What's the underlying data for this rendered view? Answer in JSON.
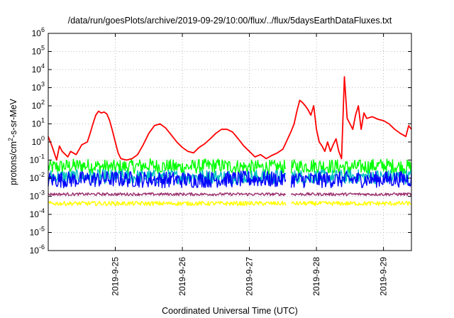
{
  "chart_data": {
    "type": "line",
    "title": "/data/run/goesPlots/archive/2019-09-29/10:00/flux/../flux/5daysEarthDataFluxes.txt",
    "xlabel": "Coordinated Universal Time (UTC)",
    "ylabel_main": "protons/cm",
    "ylabel_sup": "2",
    "ylabel_rest": "-s-sr-MeV",
    "y_scale": "log",
    "ylim": [
      1e-06,
      1000000.0
    ],
    "y_ticks": [
      {
        "value": 1e-06,
        "base": "10",
        "exp": "-6"
      },
      {
        "value": 1e-05,
        "base": "10",
        "exp": "-5"
      },
      {
        "value": 0.0001,
        "base": "10",
        "exp": "-4"
      },
      {
        "value": 0.001,
        "base": "10",
        "exp": "-3"
      },
      {
        "value": 0.01,
        "base": "10",
        "exp": "-2"
      },
      {
        "value": 0.1,
        "base": "10",
        "exp": "-1"
      },
      {
        "value": 1,
        "base": "10",
        "exp": "0"
      },
      {
        "value": 10,
        "base": "10",
        "exp": "1"
      },
      {
        "value": 100,
        "base": "10",
        "exp": "2"
      },
      {
        "value": 1000,
        "base": "10",
        "exp": "3"
      },
      {
        "value": 10000,
        "base": "10",
        "exp": "4"
      },
      {
        "value": 100000,
        "base": "10",
        "exp": "5"
      },
      {
        "value": 1000000,
        "base": "10",
        "exp": "6"
      }
    ],
    "x_ticks": [
      {
        "value": "2019-09-25",
        "label": "2019-9-25"
      },
      {
        "value": "2019-09-26",
        "label": "2019-9-26"
      },
      {
        "value": "2019-09-27",
        "label": "2019-9-27"
      },
      {
        "value": "2019-09-28",
        "label": "2019-9-28"
      },
      {
        "value": "2019-09-29",
        "label": "2019-9-29"
      }
    ],
    "xlim": [
      "2019-09-24 00:00",
      "2019-09-29 10:00"
    ],
    "grid": true,
    "legend": "none",
    "data_gaps": [
      [
        "2019-09-27 13:00",
        "2019-09-27 15:00"
      ]
    ],
    "series": [
      {
        "color": "#ff0000",
        "points": [
          [
            "2019-09-24 00:00",
            2.0
          ],
          [
            "2019-09-24 01:30",
            0.5
          ],
          [
            "2019-09-24 03:00",
            0.1
          ],
          [
            "2019-09-24 04:00",
            0.6
          ],
          [
            "2019-09-24 05:00",
            0.3
          ],
          [
            "2019-09-24 07:00",
            0.15
          ],
          [
            "2019-09-24 08:00",
            0.3
          ],
          [
            "2019-09-24 10:00",
            0.2
          ],
          [
            "2019-09-24 12:00",
            0.7
          ],
          [
            "2019-09-24 14:00",
            1.0
          ],
          [
            "2019-09-24 15:00",
            3.0
          ],
          [
            "2019-09-24 16:00",
            10
          ],
          [
            "2019-09-24 17:00",
            30
          ],
          [
            "2019-09-24 18:00",
            50
          ],
          [
            "2019-09-24 19:00",
            40
          ],
          [
            "2019-09-24 20:00",
            45
          ],
          [
            "2019-09-24 21:00",
            35
          ],
          [
            "2019-09-24 22:00",
            15
          ],
          [
            "2019-09-24 23:00",
            4.0
          ],
          [
            "2019-09-25 00:00",
            1.0
          ],
          [
            "2019-09-25 01:00",
            0.25
          ],
          [
            "2019-09-25 02:00",
            0.12
          ],
          [
            "2019-09-25 04:00",
            0.1
          ],
          [
            "2019-09-25 06:00",
            0.12
          ],
          [
            "2019-09-25 08:00",
            0.2
          ],
          [
            "2019-09-25 10:00",
            0.7
          ],
          [
            "2019-09-25 12:00",
            3.0
          ],
          [
            "2019-09-25 14:00",
            8.0
          ],
          [
            "2019-09-25 16:00",
            10
          ],
          [
            "2019-09-25 18:00",
            6.0
          ],
          [
            "2019-09-25 20:00",
            2.5
          ],
          [
            "2019-09-25 22:00",
            1.0
          ],
          [
            "2019-09-26 00:00",
            0.5
          ],
          [
            "2019-09-26 02:00",
            0.3
          ],
          [
            "2019-09-26 04:00",
            0.25
          ],
          [
            "2019-09-26 06:00",
            0.5
          ],
          [
            "2019-09-26 08:00",
            0.8
          ],
          [
            "2019-09-26 10:00",
            1.5
          ],
          [
            "2019-09-26 12:00",
            3.0
          ],
          [
            "2019-09-26 14:00",
            5.0
          ],
          [
            "2019-09-26 16:00",
            5.0
          ],
          [
            "2019-09-26 18:00",
            3.5
          ],
          [
            "2019-09-26 20:00",
            1.5
          ],
          [
            "2019-09-26 22:00",
            0.6
          ],
          [
            "2019-09-27 00:00",
            0.3
          ],
          [
            "2019-09-27 02:00",
            0.15
          ],
          [
            "2019-09-27 04:00",
            0.2
          ],
          [
            "2019-09-27 06:00",
            0.12
          ],
          [
            "2019-09-27 08:00",
            0.18
          ],
          [
            "2019-09-27 10:00",
            0.25
          ],
          [
            "2019-09-27 12:00",
            0.4
          ],
          [
            "2019-09-27 15:00",
            4.0
          ],
          [
            "2019-09-27 16:00",
            10
          ],
          [
            "2019-09-27 17:00",
            50
          ],
          [
            "2019-09-27 18:00",
            200
          ],
          [
            "2019-09-27 19:00",
            150
          ],
          [
            "2019-09-27 20:00",
            100
          ],
          [
            "2019-09-27 21:00",
            60
          ],
          [
            "2019-09-27 22:00",
            30
          ],
          [
            "2019-09-27 23:00",
            100
          ],
          [
            "2019-09-28 00:00",
            5.0
          ],
          [
            "2019-09-28 01:00",
            1.0
          ],
          [
            "2019-09-28 02:00",
            0.6
          ],
          [
            "2019-09-28 03:00",
            0.3
          ],
          [
            "2019-09-28 04:00",
            1.0
          ],
          [
            "2019-09-28 05:00",
            0.3
          ],
          [
            "2019-09-28 06:00",
            0.7
          ],
          [
            "2019-09-28 07:00",
            1.5
          ],
          [
            "2019-09-28 08:00",
            0.3
          ],
          [
            "2019-09-28 09:00",
            0.12
          ],
          [
            "2019-09-28 10:00",
            4000
          ],
          [
            "2019-09-28 11:00",
            20
          ],
          [
            "2019-09-28 12:00",
            10
          ],
          [
            "2019-09-28 13:00",
            5.0
          ],
          [
            "2019-09-28 14:00",
            30
          ],
          [
            "2019-09-28 15:00",
            100
          ],
          [
            "2019-09-28 16:00",
            5.0
          ],
          [
            "2019-09-28 17:00",
            40
          ],
          [
            "2019-09-28 18:00",
            20
          ],
          [
            "2019-09-28 20:00",
            25
          ],
          [
            "2019-09-28 22:00",
            18
          ],
          [
            "2019-09-29 00:00",
            15
          ],
          [
            "2019-09-29 02:00",
            10
          ],
          [
            "2019-09-29 04:00",
            5.0
          ],
          [
            "2019-09-29 06:00",
            3.0
          ],
          [
            "2019-09-29 08:00",
            2.0
          ],
          [
            "2019-09-29 09:00",
            8.0
          ],
          [
            "2019-09-29 10:00",
            5.0
          ]
        ]
      },
      {
        "color": "#00ff00",
        "points": [
          [
            "2019-09-24 00:00",
            0.04
          ],
          [
            "2019-09-24 12:00",
            0.05
          ],
          [
            "2019-09-25 00:00",
            0.04
          ],
          [
            "2019-09-25 12:00",
            0.05
          ],
          [
            "2019-09-26 00:00",
            0.04
          ],
          [
            "2019-09-26 12:00",
            0.05
          ],
          [
            "2019-09-27 00:00",
            0.04
          ],
          [
            "2019-09-27 12:00",
            0.04
          ],
          [
            "2019-09-28 00:00",
            0.05
          ],
          [
            "2019-09-28 12:00",
            0.04
          ],
          [
            "2019-09-29 00:00",
            0.05
          ],
          [
            "2019-09-29 10:00",
            0.04
          ]
        ],
        "noise_decades": 0.4
      },
      {
        "color": "#00c0c0",
        "points": [
          [
            "2019-09-24 00:00",
            0.012
          ],
          [
            "2019-09-25 00:00",
            0.012
          ],
          [
            "2019-09-26 00:00",
            0.012
          ],
          [
            "2019-09-27 00:00",
            0.012
          ],
          [
            "2019-09-28 00:00",
            0.012
          ],
          [
            "2019-09-29 10:00",
            0.012
          ]
        ],
        "noise_decades": 0.4
      },
      {
        "color": "#0000ff",
        "points": [
          [
            "2019-09-24 00:00",
            0.008
          ],
          [
            "2019-09-25 00:00",
            0.009
          ],
          [
            "2019-09-26 00:00",
            0.008
          ],
          [
            "2019-09-27 00:00",
            0.009
          ],
          [
            "2019-09-28 00:00",
            0.008
          ],
          [
            "2019-09-29 10:00",
            0.009
          ]
        ],
        "noise_decades": 0.45
      },
      {
        "color": "#9b2f6e",
        "points": [
          [
            "2019-09-24 00:00",
            0.0013
          ],
          [
            "2019-09-25 00:00",
            0.0013
          ],
          [
            "2019-09-26 00:00",
            0.0013
          ],
          [
            "2019-09-27 00:00",
            0.0013
          ],
          [
            "2019-09-28 00:00",
            0.0013
          ],
          [
            "2019-09-29 10:00",
            0.0013
          ]
        ],
        "noise_decades": 0.08
      },
      {
        "color": "#ffff00",
        "points": [
          [
            "2019-09-24 00:00",
            0.0004
          ],
          [
            "2019-09-25 00:00",
            0.0004
          ],
          [
            "2019-09-26 00:00",
            0.0004
          ],
          [
            "2019-09-27 00:00",
            0.0004
          ],
          [
            "2019-09-28 00:00",
            0.0004
          ],
          [
            "2019-09-29 10:00",
            0.0004
          ]
        ],
        "noise_decades": 0.12
      }
    ]
  }
}
